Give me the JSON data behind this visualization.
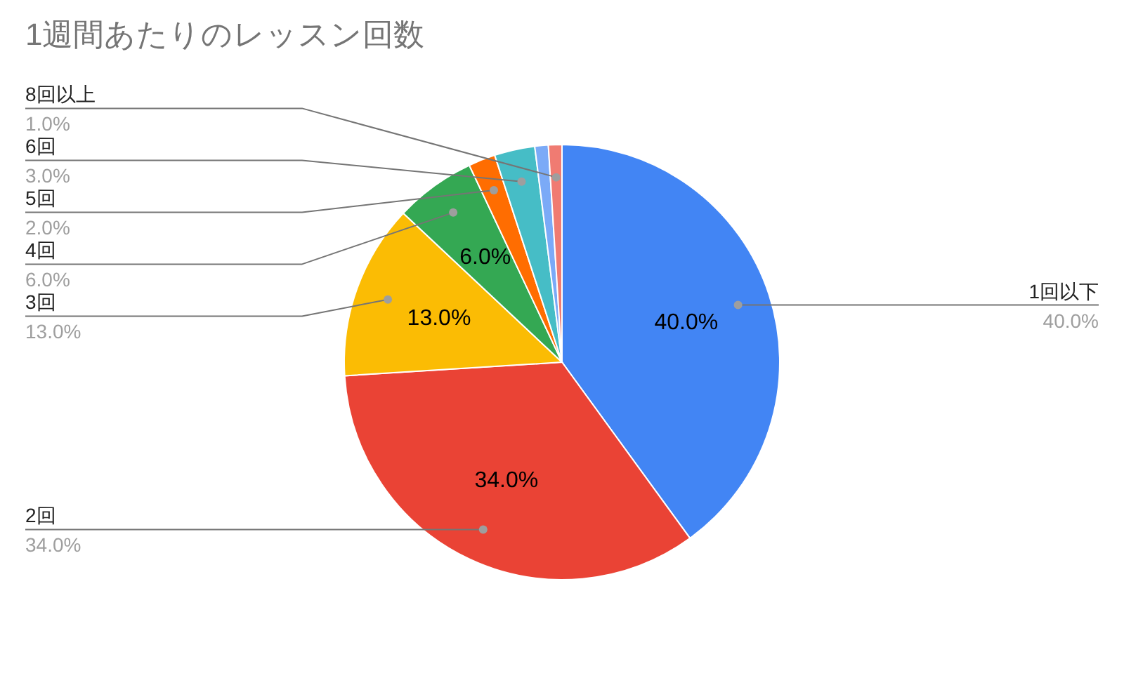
{
  "chart_data": {
    "type": "pie",
    "title": "1週間あたりのレッスン回数",
    "categories": [
      "1回以下",
      "2回",
      "3回",
      "4回",
      "5回",
      "6回",
      null,
      "8回以上"
    ],
    "values": [
      40,
      34,
      13,
      6,
      2,
      3,
      1,
      1
    ],
    "colors": [
      "#4285f4",
      "#ea4335",
      "#fbbc04",
      "#34a853",
      "#ff6d01",
      "#46bdc6",
      "#7baaf7",
      "#f07b72"
    ],
    "value_labels": [
      "40.0%",
      "34.0%",
      "13.0%",
      "6.0%",
      "2.0%",
      "3.0%",
      null,
      "1.0%"
    ]
  }
}
